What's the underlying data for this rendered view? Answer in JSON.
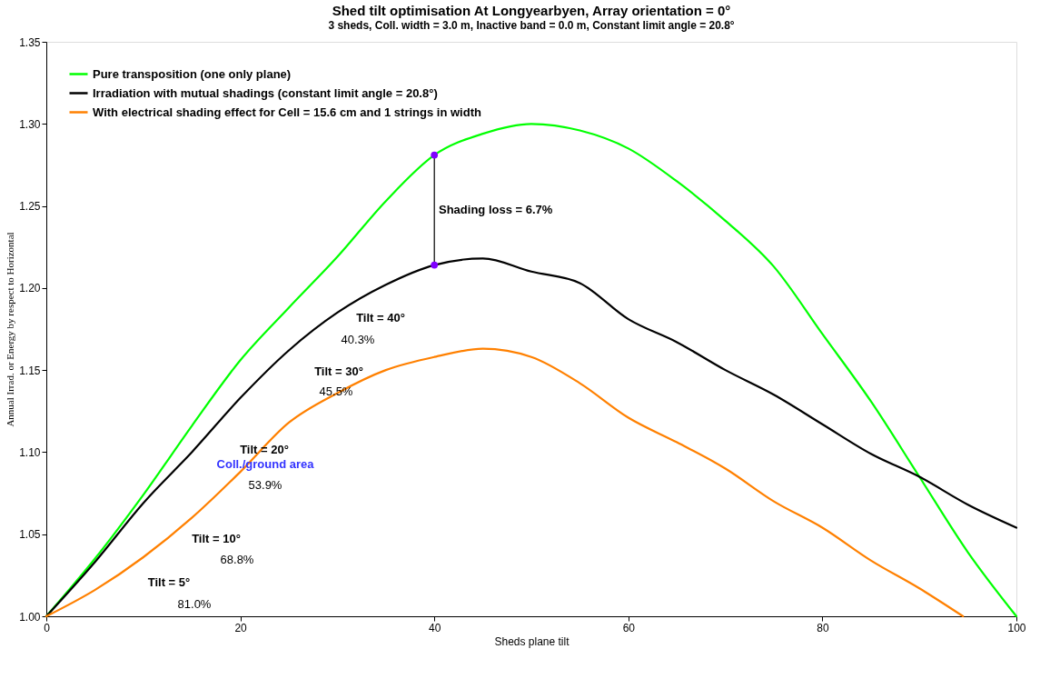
{
  "chart_data": {
    "type": "line",
    "title": "Shed tilt optimisation At Longyearbyen, Array orientation = 0°",
    "subtitle": "3 sheds,  Coll. width = 3.0 m, Inactive band = 0.0 m, Constant limit angle = 20.8°",
    "xlabel": "Sheds plane tilt",
    "ylabel": "Annual Irrad. or Energy by respect to Horizontal",
    "x": [
      0,
      5,
      10,
      15,
      20,
      25,
      30,
      35,
      40,
      45,
      50,
      55,
      60,
      65,
      70,
      75,
      80,
      85,
      90,
      95,
      100
    ],
    "series": [
      {
        "name": "Pure transposition (one only plane)",
        "color": "#00ff00",
        "values": [
          1.0,
          1.035,
          1.074,
          1.116,
          1.156,
          1.188,
          1.219,
          1.253,
          1.281,
          1.294,
          1.3,
          1.296,
          1.285,
          1.265,
          1.241,
          1.213,
          1.172,
          1.131,
          1.085,
          1.039,
          1.0
        ]
      },
      {
        "name": "Irradiation with mutual shadings (constant limit angle = 20.8°)",
        "color": "#000000",
        "values": [
          1.0,
          1.033,
          1.069,
          1.1,
          1.133,
          1.162,
          1.185,
          1.202,
          1.214,
          1.218,
          1.21,
          1.203,
          1.181,
          1.167,
          1.15,
          1.135,
          1.117,
          1.099,
          1.085,
          1.068,
          1.054
        ]
      },
      {
        "name": "With electrical shading effect for Cell = 15.6 cm and 1 strings in width",
        "color": "#ff8000",
        "x": [
          0,
          5,
          10,
          15,
          20,
          25,
          30,
          35,
          40,
          45,
          50,
          55,
          60,
          65,
          70,
          75,
          80,
          85,
          90,
          94.5
        ],
        "values": [
          1.0,
          1.016,
          1.036,
          1.06,
          1.088,
          1.118,
          1.136,
          1.15,
          1.158,
          1.163,
          1.158,
          1.142,
          1.121,
          1.106,
          1.09,
          1.07,
          1.054,
          1.034,
          1.017,
          1.0
        ]
      },
      {
        "type": "line",
        "color": "#000000",
        "x": [
          40,
          40
        ],
        "values": [
          1.281,
          1.214
        ]
      },
      {
        "type": "scatter",
        "color": "#8000ff",
        "marker": "circle",
        "x": [
          40,
          40
        ],
        "values": [
          1.281,
          1.214
        ]
      }
    ],
    "annotations": [
      "Shading loss = 6.7%",
      "Tilt = 5°",
      "81.0%",
      "Tilt = 10°",
      "68.8%",
      "Tilt = 20°",
      "Coll./ground area",
      "53.9%",
      "Tilt = 30°",
      "45.5%",
      "Tilt = 40°",
      "40.3%"
    ],
    "xlim": [
      0,
      100
    ],
    "xticks": [
      0,
      20,
      40,
      60,
      80,
      100
    ],
    "ylim": [
      1.0,
      1.35
    ],
    "yticks": [
      {
        "value": 1.0,
        "label": "1.00"
      },
      {
        "value": 1.05,
        "label": "1.05"
      },
      {
        "value": 1.1,
        "label": "1.10"
      },
      {
        "value": 1.15,
        "label": "1.15"
      },
      {
        "value": 1.2,
        "label": "1.20"
      },
      {
        "value": 1.25,
        "label": "1.25"
      },
      {
        "value": 1.3,
        "label": "1.30"
      },
      {
        "value": 1.35,
        "label": "1.35"
      }
    ],
    "legend": "top left",
    "grid": false
  }
}
